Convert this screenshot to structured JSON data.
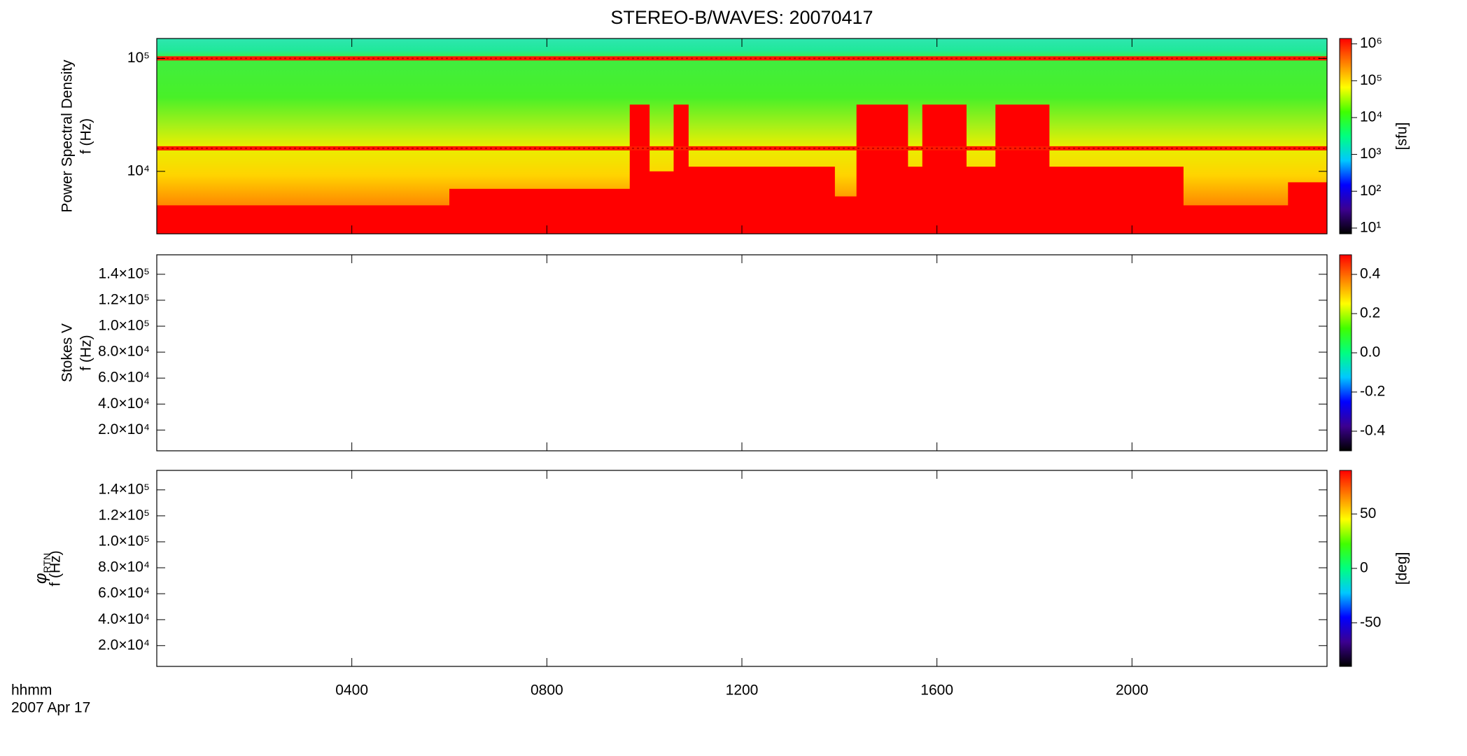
{
  "chart_data": {
    "type": "spectrogram",
    "title": "STEREO-B/WAVES: 20070417",
    "xlabel": [
      "hhmm",
      "2007 Apr 17"
    ],
    "xlim": [
      0,
      24
    ],
    "xticks": [
      {
        "value": 4,
        "label": "0400"
      },
      {
        "value": 8,
        "label": "0800"
      },
      {
        "value": 12,
        "label": "1200"
      },
      {
        "value": 16,
        "label": "1600"
      },
      {
        "value": 20,
        "label": "2000"
      }
    ],
    "panels": [
      {
        "ylabel": "Power Spectral Density",
        "yunit": "f (Hz)",
        "log": true,
        "ylim": [
          2800,
          150000
        ],
        "yticks": [
          {
            "value": 10000,
            "label": "10⁴"
          },
          {
            "value": 100000,
            "label": "10⁵"
          }
        ],
        "emission": {
          "color": "#ff0000",
          "time_edges": [
            0,
            6,
            9.7,
            10.1,
            10.6,
            10.9,
            13.9,
            14.35,
            15.4,
            15.7,
            16.6,
            17.2,
            18.3,
            21.05,
            23.2,
            24
          ],
          "upper_f": [
            5000,
            7000,
            39000,
            10000,
            39000,
            11000,
            6000,
            39000,
            11000,
            39000,
            11000,
            39000,
            11000,
            5000,
            8000
          ]
        },
        "bands": [
          100000,
          16000
        ],
        "colorbar": {
          "label": "[sfu]",
          "log": true,
          "clim": [
            7,
            1400000
          ],
          "ticks": [
            {
              "value": 10,
              "label": "10¹"
            },
            {
              "value": 100,
              "label": "10²"
            },
            {
              "value": 1000,
              "label": "10³"
            },
            {
              "value": 10000,
              "label": "10⁴"
            },
            {
              "value": 100000,
              "label": "10⁵"
            },
            {
              "value": 1000000,
              "label": "10⁶"
            }
          ],
          "colors": [
            "#000000",
            "#3c0090",
            "#0000ff",
            "#00c8ff",
            "#00ff80",
            "#40ff00",
            "#ffff00",
            "#ff8000",
            "#ff0000"
          ]
        }
      },
      {
        "ylabel": "Stokes V",
        "yunit": "f (Hz)",
        "log": false,
        "ylim": [
          4000,
          155000
        ],
        "yticks": [
          {
            "value": 20000,
            "label": "2.0×10⁴"
          },
          {
            "value": 40000,
            "label": "4.0×10⁴"
          },
          {
            "value": 60000,
            "label": "6.0×10⁴"
          },
          {
            "value": 80000,
            "label": "8.0×10⁴"
          },
          {
            "value": 100000,
            "label": "1.0×10⁵"
          },
          {
            "value": 120000,
            "label": "1.2×10⁵"
          },
          {
            "value": 140000,
            "label": "1.4×10⁵"
          }
        ],
        "colorbar": {
          "log": false,
          "clim": [
            -0.5,
            0.5
          ],
          "ticks": [
            -0.4,
            -0.2,
            {
              "value": 0,
              "label": "0.0"
            },
            0.2,
            0.4
          ],
          "colors": [
            "#000000",
            "#3c0090",
            "#0000ff",
            "#00c8ff",
            "#00ff80",
            "#40ff00",
            "#ffff00",
            "#ff8000",
            "#ff0000"
          ]
        }
      },
      {
        "ylabel": "φ",
        "ylabel_sub": "RTN",
        "yunit": "f (Hz)",
        "log": false,
        "ylim": [
          4000,
          155000
        ],
        "yticks": [
          {
            "value": 20000,
            "label": "2.0×10⁴"
          },
          {
            "value": 40000,
            "label": "4.0×10⁴"
          },
          {
            "value": 60000,
            "label": "6.0×10⁴"
          },
          {
            "value": 80000,
            "label": "8.0×10⁴"
          },
          {
            "value": 100000,
            "label": "1.0×10⁵"
          },
          {
            "value": 120000,
            "label": "1.2×10⁵"
          },
          {
            "value": 140000,
            "label": "1.4×10⁵"
          }
        ],
        "colorbar": {
          "label": "[deg]",
          "log": false,
          "clim": [
            -90,
            90
          ],
          "ticks": [
            -50,
            0,
            50
          ],
          "colors": [
            "#000000",
            "#3c0090",
            "#0000ff",
            "#00c8ff",
            "#00ff80",
            "#40ff00",
            "#ffff00",
            "#ff8000",
            "#ff0000"
          ]
        }
      }
    ]
  }
}
